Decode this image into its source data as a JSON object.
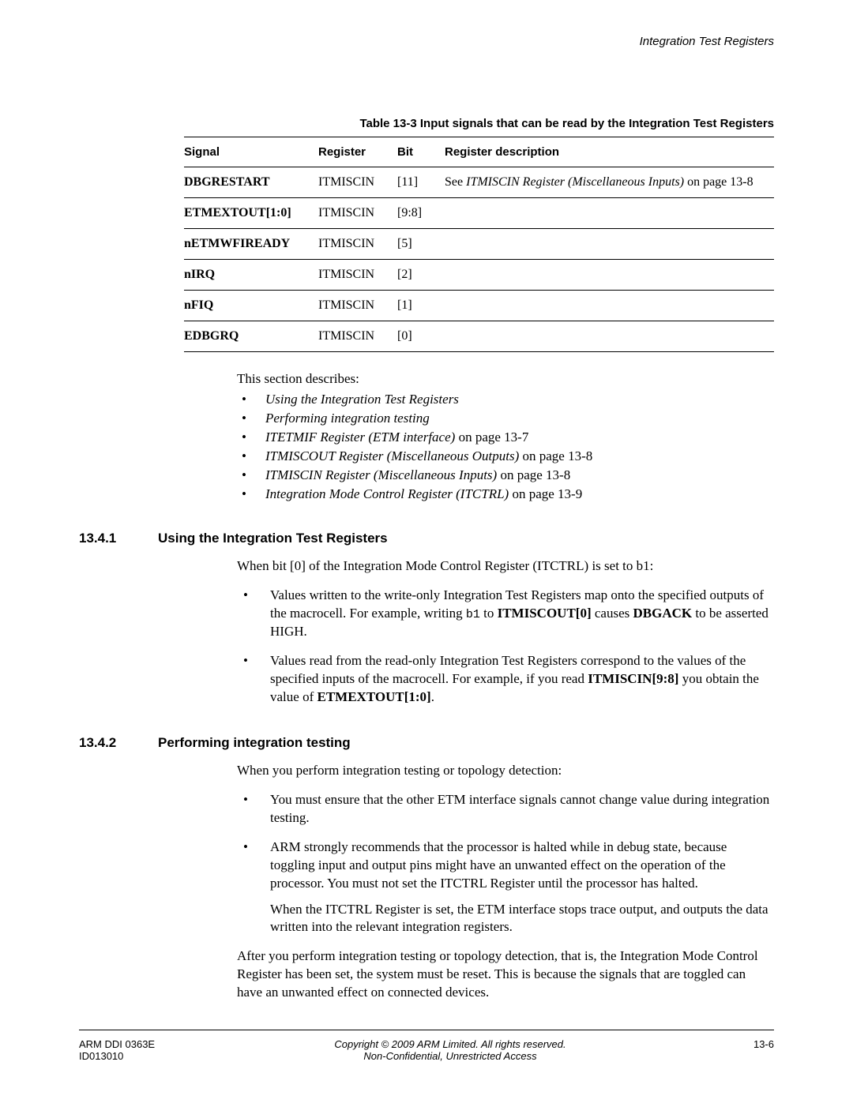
{
  "header": {
    "right": "Integration Test Registers"
  },
  "table": {
    "caption": "Table 13-3 Input signals that can be read by the Integration Test Registers",
    "columns": [
      "Signal",
      "Register",
      "Bit",
      "Register description"
    ],
    "rows": [
      {
        "signal": "DBGRESTART",
        "register": "ITMISCIN",
        "bit": "[11]",
        "desc_prefix": "See ",
        "desc_ital": "ITMISCIN Register (Miscellaneous Inputs)",
        "desc_suffix": " on page 13-8"
      },
      {
        "signal": "ETMEXTOUT[1:0]",
        "register": "ITMISCIN",
        "bit": "[9:8]",
        "desc_prefix": "",
        "desc_ital": "",
        "desc_suffix": ""
      },
      {
        "signal": "nETMWFIREADY",
        "register": "ITMISCIN",
        "bit": "[5]",
        "desc_prefix": "",
        "desc_ital": "",
        "desc_suffix": ""
      },
      {
        "signal": "nIRQ",
        "register": "ITMISCIN",
        "bit": "[2]",
        "desc_prefix": "",
        "desc_ital": "",
        "desc_suffix": ""
      },
      {
        "signal": "nFIQ",
        "register": "ITMISCIN",
        "bit": "[1]",
        "desc_prefix": "",
        "desc_ital": "",
        "desc_suffix": ""
      },
      {
        "signal": "EDBGRQ",
        "register": "ITMISCIN",
        "bit": "[0]",
        "desc_prefix": "",
        "desc_ital": "",
        "desc_suffix": ""
      }
    ]
  },
  "intro": "This section describes:",
  "refs": [
    {
      "ital": "Using the Integration Test Registers",
      "tail": ""
    },
    {
      "ital": "Performing integration testing",
      "tail": ""
    },
    {
      "ital": "ITETMIF Register (ETM interface)",
      "tail": " on page 13-7"
    },
    {
      "ital": "ITMISCOUT Register (Miscellaneous Outputs)",
      "tail": " on page 13-8"
    },
    {
      "ital": "ITMISCIN Register (Miscellaneous Inputs)",
      "tail": " on page 13-8"
    },
    {
      "ital": "Integration Mode Control Register (ITCTRL)",
      "tail": " on page 13-9"
    }
  ],
  "sec1": {
    "num": "13.4.1",
    "title": "Using the Integration Test Registers",
    "intro": "When bit [0] of the Integration Mode Control Register (ITCTRL) is set to b1:",
    "b1_a": "Values written to the write-only Integration Test Registers map onto the specified outputs of the macrocell. For example, writing ",
    "b1_code": "b1",
    "b1_b": " to ",
    "b1_bold1": "ITMISCOUT[0]",
    "b1_c": " causes ",
    "b1_bold2": "DBGACK",
    "b1_d": " to be asserted HIGH.",
    "b2_a": "Values read from the read-only Integration Test Registers correspond to the values of the specified inputs of the macrocell. For example, if you read ",
    "b2_bold1": "ITMISCIN[9:8]",
    "b2_b": " you obtain the value of ",
    "b2_bold2": "ETMEXTOUT[1:0]",
    "b2_c": "."
  },
  "sec2": {
    "num": "13.4.2",
    "title": "Performing integration testing",
    "intro": "When you perform integration testing or topology detection:",
    "b1": "You must ensure that the other ETM interface signals cannot change value during integration testing.",
    "b2": "ARM strongly recommends that the processor is halted while in debug state, because toggling input and output pins might have an unwanted effect on the operation of the processor. You must not set the ITCTRL Register until the processor has halted.",
    "b2_sub": "When the ITCTRL Register is set, the ETM interface stops trace output, and outputs the data written into the relevant integration registers.",
    "after": "After you perform integration testing or topology detection, that is, the Integration Mode Control Register has been set, the system must be reset. This is because the signals that are toggled can have an unwanted effect on connected devices."
  },
  "footer": {
    "left1": "ARM DDI 0363E",
    "left2": "ID013010",
    "mid1": "Copyright © 2009 ARM Limited. All rights reserved.",
    "mid2": "Non-Confidential, Unrestricted Access",
    "right": "13-6"
  }
}
